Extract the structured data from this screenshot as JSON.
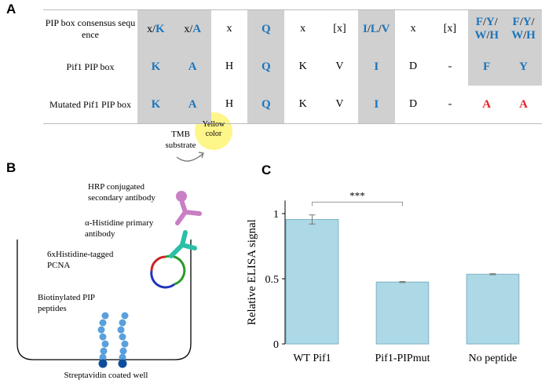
{
  "panel_a": {
    "label": "A",
    "table": {
      "rows": [
        {
          "label": "PIP box consensus sequence",
          "cells": [
            [
              "x/",
              {
                "text": "K",
                "color": "#1b75bc"
              }
            ],
            [
              "x/",
              {
                "text": "A",
                "color": "#1b75bc"
              }
            ],
            "x",
            {
              "text": "Q",
              "color": "#1b75bc"
            },
            "x",
            "[x]",
            [
              {
                "text": "I",
                "color": "#1b75bc"
              },
              "/",
              {
                "text": "L",
                "color": "#1b75bc"
              },
              "/",
              {
                "text": "V",
                "color": "#1b75bc"
              }
            ],
            "x",
            "[x]",
            [
              {
                "text": "F",
                "color": "#1b75bc"
              },
              "/",
              {
                "text": "Y",
                "color": "#1b75bc"
              },
              "/",
              {
                "text": "W",
                "color": "#1b75bc"
              },
              "/",
              {
                "text": "H",
                "color": "#1b75bc"
              }
            ],
            [
              {
                "text": "F",
                "color": "#1b75bc"
              },
              "/",
              {
                "text": "Y",
                "color": "#1b75bc"
              },
              "/",
              {
                "text": "W",
                "color": "#1b75bc"
              },
              "/",
              {
                "text": "H",
                "color": "#1b75bc"
              }
            ]
          ]
        },
        {
          "label": "Pif1 PIP box",
          "cells": [
            {
              "text": "K",
              "color": "#1b75bc"
            },
            {
              "text": "A",
              "color": "#1b75bc"
            },
            "H",
            {
              "text": "Q",
              "color": "#1b75bc"
            },
            "K",
            "V",
            {
              "text": "I",
              "color": "#1b75bc"
            },
            "D",
            "-",
            {
              "text": "F",
              "color": "#1b75bc"
            },
            {
              "text": "Y",
              "color": "#1b75bc"
            }
          ]
        },
        {
          "label": "Mutated Pif1 PIP box",
          "cells": [
            {
              "text": "K",
              "color": "#1b75bc"
            },
            {
              "text": "A",
              "color": "#1b75bc"
            },
            "H",
            {
              "text": "Q",
              "color": "#1b75bc"
            },
            "K",
            "V",
            {
              "text": "I",
              "color": "#1b75bc"
            },
            "D",
            "-",
            {
              "text": "A",
              "color": "#e8202a"
            },
            {
              "text": "A",
              "color": "#e8202a"
            }
          ]
        }
      ]
    }
  },
  "panel_b": {
    "label": "B",
    "labels": [
      "TMB substrate",
      "Yellow color",
      "HRP conjugated secondary antibody",
      "α-Histidine primary antibody",
      "6xHistidine-tagged PCNA",
      "Biotinylated PIP peptides",
      "Streptavidin coated well"
    ]
  },
  "chart_data": {
    "type": "bar",
    "label": "C",
    "ylabel": "Relative ELISA signal",
    "categories": [
      "WT Pif1",
      "Pif1-PIPmut",
      "No peptide"
    ],
    "values": [
      0.955,
      0.475,
      0.535
    ],
    "errors": [
      0.035,
      0.004,
      0.004
    ],
    "color": "#add8e6",
    "ylim": [
      0,
      1.1
    ],
    "yticks": [
      0,
      0.5,
      1
    ],
    "significance": {
      "label": "***",
      "between": [
        "WT Pif1",
        "Pif1-PIPmut"
      ]
    }
  }
}
